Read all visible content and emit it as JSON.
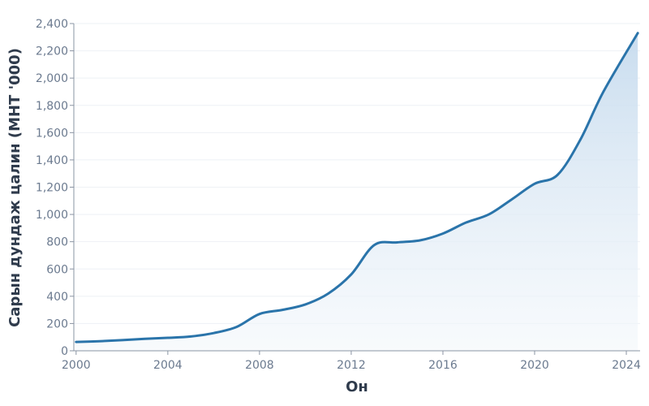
{
  "chart_data": {
    "type": "area",
    "title": "",
    "xlabel": "Он",
    "ylabel": "Сарын дундаж цалин (МНТ '000)",
    "xlim": [
      1999.9,
      2024.6
    ],
    "ylim": [
      0,
      2400
    ],
    "x_ticks": [
      2000,
      2004,
      2008,
      2012,
      2016,
      2020,
      2024
    ],
    "x_tick_labels": [
      "2000",
      "2004",
      "2008",
      "2012",
      "2016",
      "2020",
      "2024"
    ],
    "y_ticks": [
      0,
      200,
      400,
      600,
      800,
      1000,
      1200,
      1400,
      1600,
      1800,
      2000,
      2200,
      2400
    ],
    "y_tick_labels": [
      "0",
      "200",
      "400",
      "600",
      "800",
      "1,000",
      "1,200",
      "1,400",
      "1,600",
      "1,800",
      "2,000",
      "2,200",
      "2,400"
    ],
    "grid": true,
    "legend": "none",
    "series": [
      {
        "color": "#2a74aa",
        "fill_color": "#cfe0ef",
        "x": [
          2000,
          2001,
          2002,
          2003,
          2004,
          2005,
          2006,
          2007,
          2008,
          2009,
          2010,
          2011,
          2012,
          2013,
          2014,
          2015,
          2016,
          2017,
          2018,
          2019,
          2020,
          2021,
          2022,
          2023,
          2024.5
        ],
        "y": [
          65,
          70,
          78,
          88,
          95,
          105,
          130,
          175,
          270,
          300,
          340,
          420,
          560,
          775,
          795,
          810,
          860,
          940,
          1000,
          1110,
          1225,
          1290,
          1550,
          1900,
          2330
        ]
      }
    ]
  }
}
